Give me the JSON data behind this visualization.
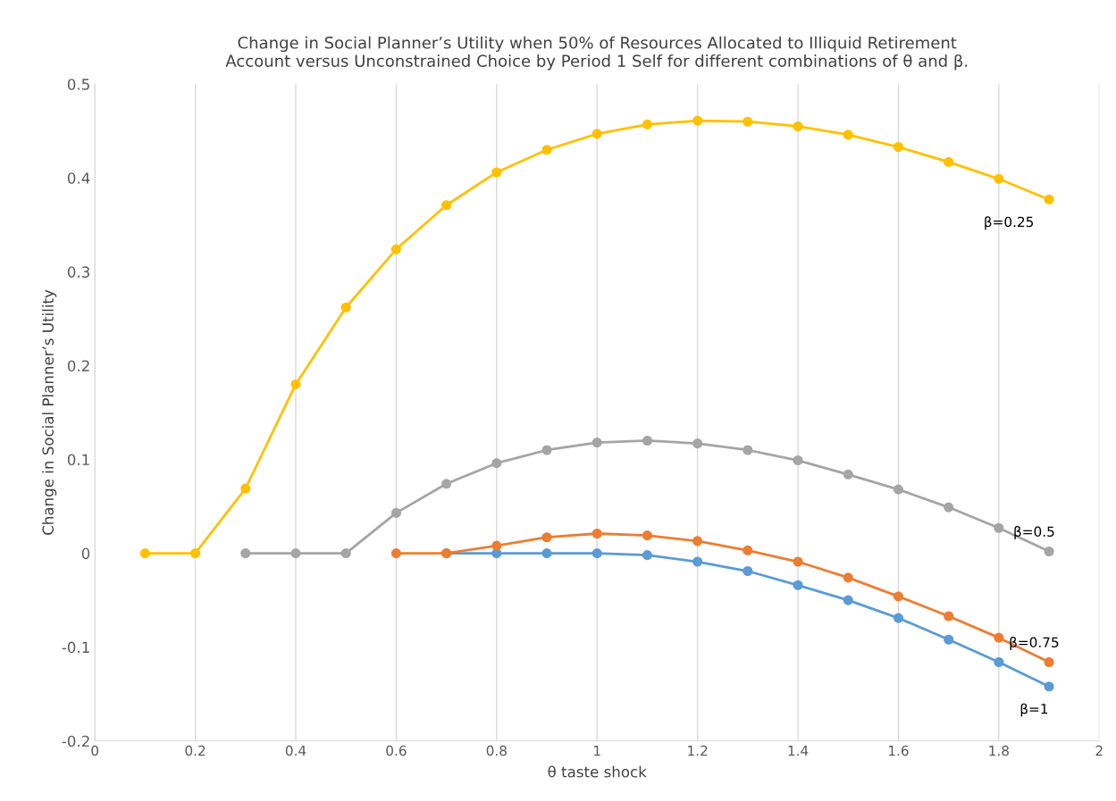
{
  "chart_data": {
    "type": "line",
    "title": "Change in Social Planner’s Utility when 50% of Resources Allocated to Illiquid Retirement\nAccount versus Unconstrained Choice by Period 1 Self for different combinations of θ and β.",
    "xlabel": "θ taste shock",
    "ylabel": "Change in Social Planner’s Utility",
    "xlim": [
      0,
      2
    ],
    "xticks": [
      0,
      0.2,
      0.4,
      0.6,
      0.8,
      1,
      1.2,
      1.4,
      1.6,
      1.8,
      2
    ],
    "ylim": [
      -0.2,
      0.5
    ],
    "yticks": [
      -0.2,
      -0.1,
      0,
      0.1,
      0.2,
      0.3,
      0.4,
      0.5
    ],
    "grid": "x",
    "marker": "circle",
    "line_style": "solid",
    "series": [
      {
        "name": "β=1",
        "color": "#5b9bd5",
        "x": [
          0.7,
          0.8,
          0.9,
          1.0,
          1.1,
          1.2,
          1.3,
          1.4,
          1.5,
          1.6,
          1.7,
          1.8,
          1.9
        ],
        "values": [
          0,
          0,
          0,
          0,
          -0.002,
          -0.009,
          -0.019,
          -0.034,
          -0.05,
          -0.069,
          -0.092,
          -0.116,
          -0.142
        ]
      },
      {
        "name": "β=0.75",
        "color": "#ed7d31",
        "x": [
          0.6,
          0.7,
          0.8,
          0.9,
          1.0,
          1.1,
          1.2,
          1.3,
          1.4,
          1.5,
          1.6,
          1.7,
          1.8,
          1.9
        ],
        "values": [
          0,
          0,
          0.008,
          0.017,
          0.021,
          0.019,
          0.013,
          0.003,
          -0.009,
          -0.026,
          -0.046,
          -0.067,
          -0.09,
          -0.116
        ]
      },
      {
        "name": "β=0.5",
        "color": "#a5a5a5",
        "x": [
          0.3,
          0.4,
          0.5,
          0.6,
          0.7,
          0.8,
          0.9,
          1.0,
          1.1,
          1.2,
          1.3,
          1.4,
          1.5,
          1.6,
          1.7,
          1.8,
          1.9
        ],
        "values": [
          0,
          0,
          0,
          0.043,
          0.074,
          0.096,
          0.11,
          0.118,
          0.12,
          0.117,
          0.11,
          0.099,
          0.084,
          0.068,
          0.049,
          0.027,
          0.002
        ]
      },
      {
        "name": "β=0.25",
        "color": "#ffc000",
        "x": [
          0.1,
          0.2,
          0.3,
          0.4,
          0.5,
          0.6,
          0.7,
          0.8,
          0.9,
          1.0,
          1.1,
          1.2,
          1.3,
          1.4,
          1.5,
          1.6,
          1.7,
          1.8,
          1.9
        ],
        "values": [
          0,
          0,
          0.069,
          0.18,
          0.262,
          0.324,
          0.371,
          0.406,
          0.43,
          0.447,
          0.457,
          0.461,
          0.46,
          0.455,
          0.446,
          0.433,
          0.417,
          0.399,
          0.377
        ]
      }
    ]
  }
}
